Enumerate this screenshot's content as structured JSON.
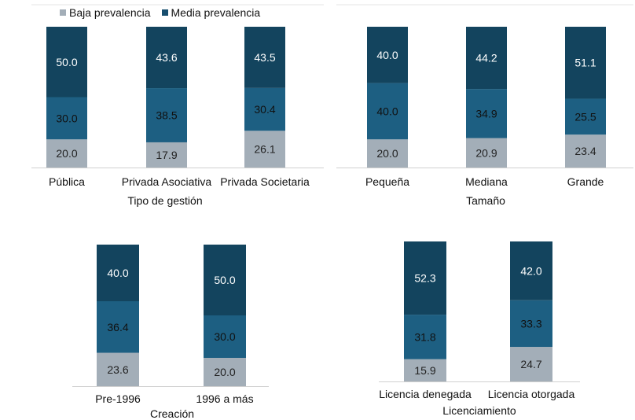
{
  "legend": [
    {
      "label": "Baja prevalencia",
      "color": "#a3aeb8"
    },
    {
      "label": "Media prevalencia",
      "color": "#174e6e"
    }
  ],
  "colors": {
    "baja": "#a3aeb8",
    "media": "#1d5f82",
    "alta": "#13445e",
    "axis": "#d0d0d0"
  },
  "chart_data": [
    {
      "type": "bar",
      "stacked": true,
      "xlabel": "Tipo de gestión",
      "categories": [
        "Pública",
        "Privada Asociativa",
        "Privada Societaria"
      ],
      "series": [
        {
          "name": "Baja prevalencia",
          "values": [
            20.0,
            17.9,
            26.1
          ]
        },
        {
          "name": "Media prevalencia",
          "values": [
            30.0,
            38.5,
            30.4
          ]
        },
        {
          "values": [
            50.0,
            43.6,
            43.5
          ]
        }
      ],
      "ylim": [
        0,
        100
      ]
    },
    {
      "type": "bar",
      "stacked": true,
      "xlabel": "Tamaño",
      "categories": [
        "Pequeña",
        "Mediana",
        "Grande"
      ],
      "series": [
        {
          "name": "Baja prevalencia",
          "values": [
            20.0,
            20.9,
            23.4
          ]
        },
        {
          "name": "Media prevalencia",
          "values": [
            40.0,
            34.9,
            25.5
          ]
        },
        {
          "values": [
            40.0,
            44.2,
            51.1
          ]
        }
      ],
      "ylim": [
        0,
        100
      ]
    },
    {
      "type": "bar",
      "stacked": true,
      "xlabel": "Creación",
      "categories": [
        "Pre-1996",
        "1996 a más"
      ],
      "series": [
        {
          "name": "Baja prevalencia",
          "values": [
            23.6,
            20.0
          ]
        },
        {
          "name": "Media prevalencia",
          "values": [
            36.4,
            30.0
          ]
        },
        {
          "values": [
            40.0,
            50.0
          ]
        }
      ],
      "ylim": [
        0,
        100
      ]
    },
    {
      "type": "bar",
      "stacked": true,
      "xlabel": "Licenciamiento",
      "categories": [
        "Licencia denegada",
        "Licencia otorgada"
      ],
      "series": [
        {
          "name": "Baja prevalencia",
          "values": [
            15.9,
            24.7
          ]
        },
        {
          "name": "Media prevalencia",
          "values": [
            31.8,
            33.3
          ]
        },
        {
          "values": [
            52.3,
            42.0
          ]
        }
      ],
      "ylim": [
        0,
        100
      ]
    }
  ]
}
